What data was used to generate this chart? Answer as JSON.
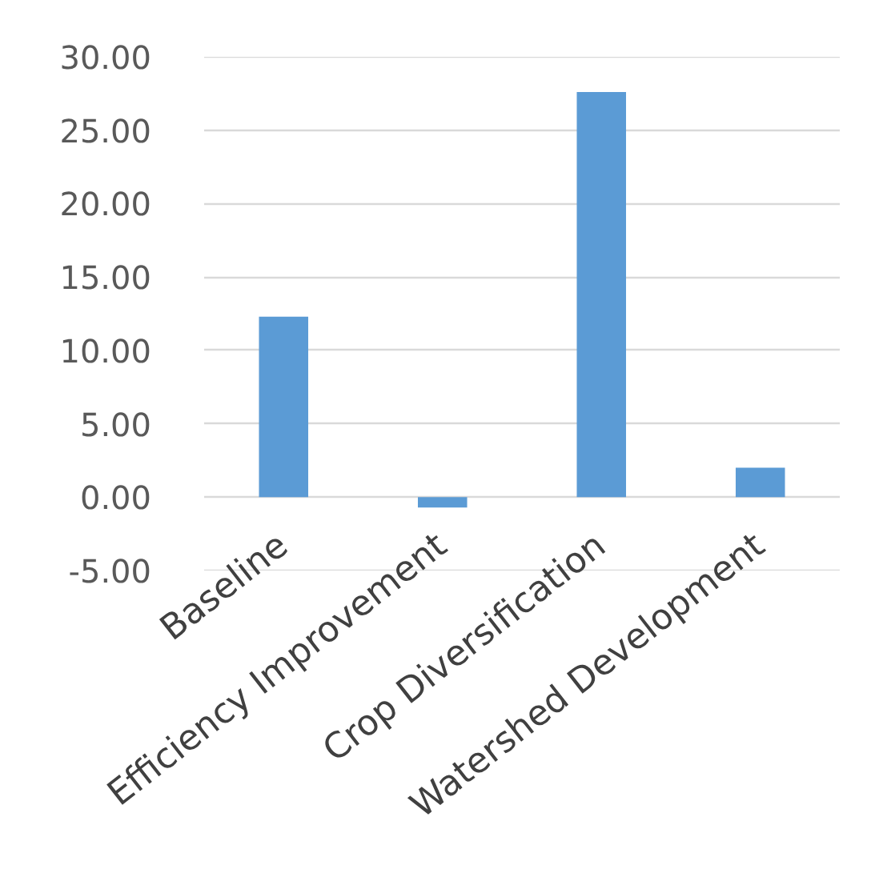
{
  "chart_data": {
    "type": "bar",
    "categories": [
      "Baseline",
      "Efficiency Improvement",
      "Crop Diversification",
      "Watershed Development"
    ],
    "values": [
      12.3,
      -0.7,
      27.6,
      2.0
    ],
    "color": "#5b9bd5",
    "ylim": [
      -5,
      30
    ],
    "yticks": [
      {
        "value": -5,
        "label": "-5.00"
      },
      {
        "value": 0,
        "label": "0.00"
      },
      {
        "value": 5,
        "label": "5.00"
      },
      {
        "value": 10,
        "label": "10.00"
      },
      {
        "value": 15,
        "label": "15.00"
      },
      {
        "value": 20,
        "label": "20.00"
      },
      {
        "value": 25,
        "label": "25.00"
      },
      {
        "value": 30,
        "label": "30.00"
      }
    ],
    "grid": "y"
  }
}
